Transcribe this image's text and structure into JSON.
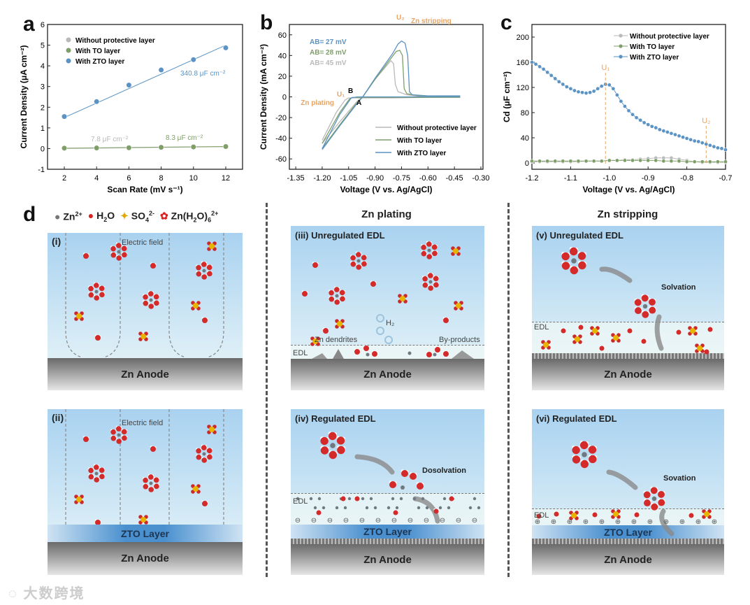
{
  "panel_labels": {
    "a": "a",
    "b": "b",
    "c": "c",
    "d": "d"
  },
  "colors": {
    "without": "#b9b9b9",
    "to": "#7f9f68",
    "zto": "#5a93c4",
    "annotation": "#e8a464"
  },
  "chart_data": [
    {
      "id": "a",
      "type": "scatter",
      "xlabel": "Scan Rate (mV s⁻¹)",
      "ylabel": "Current Density (μA cm⁻²)",
      "xlim": [
        0.96,
        13.04
      ],
      "ylim": [
        -1,
        6
      ],
      "xticks": [
        2,
        4,
        6,
        8,
        10,
        12
      ],
      "yticks": [
        -1,
        0,
        1,
        2,
        3,
        4,
        5,
        6
      ],
      "legend_position": "top-left",
      "series": [
        {
          "name": "Without protective layer",
          "key": "without",
          "x": [
            2,
            4,
            6,
            8,
            10,
            12
          ],
          "y": [
            0.01,
            0.02,
            0.03,
            0.05,
            0.07,
            0.09
          ],
          "fit": [
            [
              2,
              0.0
            ],
            [
              12,
              0.09
            ]
          ]
        },
        {
          "name": "With TO layer",
          "key": "to",
          "x": [
            2,
            4,
            6,
            8,
            10,
            12
          ],
          "y": [
            0.02,
            0.03,
            0.04,
            0.06,
            0.08,
            0.1
          ],
          "fit": [
            [
              2,
              0.02
            ],
            [
              12,
              0.1
            ]
          ]
        },
        {
          "name": "With ZTO layer",
          "key": "zto",
          "x": [
            2,
            4,
            6,
            8,
            10,
            12
          ],
          "y": [
            1.55,
            2.27,
            3.07,
            3.8,
            4.3,
            4.87
          ],
          "fit": [
            [
              2,
              1.5
            ],
            [
              12,
              5.0
            ]
          ]
        }
      ],
      "annotations": {
        "zto": "340.8 μF cm⁻²",
        "without": "7.8 μF cm⁻²",
        "to": "8.3 μF cm⁻²"
      }
    },
    {
      "id": "b",
      "type": "line",
      "xlabel": "Voltage (V vs. Ag/AgCl)",
      "ylabel": "Current Density (mA cm⁻²)",
      "xlim": [
        -1.386,
        -0.288
      ],
      "ylim": [
        -70,
        70
      ],
      "xticks": [
        "-1.35",
        "-1.20",
        "-1.05",
        "-0.90",
        "-0.75",
        "-0.60",
        "-0.45",
        "-0.30"
      ],
      "yticks": [
        -60,
        -40,
        -20,
        0,
        20,
        40,
        60
      ],
      "legend_position": "bottom-right",
      "series": [
        {
          "name": "Without protective layer",
          "key": "without",
          "points": [
            [
              -1.2,
              -45
            ],
            [
              -1.1,
              -24
            ],
            [
              -1.0,
              -4
            ],
            [
              -0.97,
              0
            ],
            [
              -0.9,
              17
            ],
            [
              -0.83,
              31
            ],
            [
              -0.81,
              35
            ],
            [
              -0.795,
              32
            ],
            [
              -0.785,
              12
            ],
            [
              -0.77,
              5
            ],
            [
              -0.72,
              2
            ],
            [
              -0.65,
              0.5
            ],
            [
              -0.42,
              0
            ],
            [
              -0.8,
              -1
            ],
            [
              -1.05,
              -1
            ],
            [
              -1.07,
              -3
            ],
            [
              -1.12,
              -15
            ],
            [
              -1.2,
              -42
            ]
          ]
        },
        {
          "name": "With TO layer",
          "key": "to",
          "points": [
            [
              -1.2,
              -50
            ],
            [
              -1.1,
              -27
            ],
            [
              -1.0,
              -5
            ],
            [
              -0.97,
              0
            ],
            [
              -0.9,
              17
            ],
            [
              -0.82,
              35
            ],
            [
              -0.78,
              44
            ],
            [
              -0.76,
              45
            ],
            [
              -0.745,
              40
            ],
            [
              -0.735,
              8
            ],
            [
              -0.72,
              3
            ],
            [
              -0.65,
              1
            ],
            [
              -0.42,
              0.5
            ],
            [
              -0.42,
              -0.5
            ],
            [
              -0.8,
              -0.5
            ],
            [
              -1.03,
              -0.5
            ],
            [
              -1.045,
              -2
            ],
            [
              -1.1,
              -15
            ],
            [
              -1.2,
              -45
            ]
          ]
        },
        {
          "name": "With ZTO layer",
          "key": "zto",
          "points": [
            [
              -1.2,
              -51
            ],
            [
              -1.1,
              -28
            ],
            [
              -1.0,
              -6
            ],
            [
              -0.97,
              0
            ],
            [
              -0.9,
              18
            ],
            [
              -0.8,
              42
            ],
            [
              -0.77,
              51
            ],
            [
              -0.75,
              54
            ],
            [
              -0.73,
              52
            ],
            [
              -0.715,
              40
            ],
            [
              -0.705,
              5
            ],
            [
              -0.69,
              2
            ],
            [
              -0.6,
              1
            ],
            [
              -0.42,
              1
            ],
            [
              -0.42,
              0
            ],
            [
              -0.8,
              0
            ],
            [
              -1.0,
              0
            ],
            [
              -1.035,
              -1
            ],
            [
              -1.1,
              -17
            ],
            [
              -1.2,
              -50
            ]
          ]
        }
      ],
      "annotations": {
        "ab_zto": "AB= 27 mV",
        "ab_to": "AB= 28 mV",
        "ab_without": "AB= 45 mV",
        "u2": "U₂",
        "stripping": "Zn stripping",
        "plating": "Zn plating",
        "u1": "U₁",
        "B": "B",
        "A": "A"
      }
    },
    {
      "id": "c",
      "type": "line",
      "xlabel": "Voltage (V vs. Ag/AgCl)",
      "ylabel": "Cd (μF cm⁻²)",
      "xlim": [
        -1.2,
        -0.7
      ],
      "ylim": [
        -10,
        220
      ],
      "xticks": [
        "-1.2",
        "-1.1",
        "-1.0",
        "-0.9",
        "-0.8",
        "-0.7"
      ],
      "yticks": [
        0,
        40,
        80,
        120,
        160,
        200
      ],
      "legend_position": "top-right",
      "series": [
        {
          "name": "Without protective layer",
          "key": "without",
          "x_start": -1.2,
          "x_step": 0.02,
          "y": [
            2,
            2,
            2,
            2,
            2,
            2,
            2,
            3,
            3,
            3,
            4,
            4,
            5,
            5,
            6,
            7,
            8,
            8,
            8,
            6,
            4,
            2,
            1,
            1,
            1,
            1
          ]
        },
        {
          "name": "With TO layer",
          "key": "to",
          "x_start": -1.2,
          "x_step": 0.02,
          "y": [
            3,
            3,
            3,
            3,
            3,
            3,
            3,
            3,
            3,
            3,
            4,
            4,
            4,
            4,
            4,
            4,
            4,
            3,
            3,
            3,
            2,
            2,
            2,
            2,
            2,
            2
          ]
        },
        {
          "name": "With ZTO layer",
          "key": "zto",
          "x_start": -1.2,
          "x_step": 0.01,
          "y": [
            160,
            157,
            153,
            149,
            144,
            139,
            134,
            129,
            125,
            121,
            118,
            115,
            113,
            112,
            111,
            112,
            114,
            118,
            122,
            125,
            124,
            118,
            108,
            98,
            90,
            83,
            77,
            72,
            68,
            64,
            61,
            58,
            56,
            53,
            51,
            49,
            47,
            45,
            43,
            41,
            39,
            37,
            35,
            34,
            32,
            30,
            28,
            26,
            24,
            23,
            21
          ]
        }
      ],
      "markers": [
        {
          "label": "U₁",
          "x": -1.01
        },
        {
          "label": "U₂",
          "x": -0.75
        }
      ]
    }
  ],
  "panel_d": {
    "legend": {
      "zn": "Zn",
      "zn_sup": "2+",
      "h2o_h": "H",
      "h2o_sub": "2",
      "h2o_o": "O",
      "so4": "SO",
      "so4_sub": "4",
      "so4_sup": "2-",
      "znh_a": "Zn(H",
      "znh_sub1": "2",
      "znh_b": "O)",
      "znh_sub2": "6",
      "znh_sup": "2+"
    },
    "col_titles": {
      "plating": "Zn plating",
      "stripping": "Zn stripping"
    },
    "i": {
      "num": "(i)",
      "field": "Electric field",
      "anode": "Zn Anode"
    },
    "ii": {
      "num": "(ii)",
      "field": "Electric field",
      "layer": "ZTO Layer",
      "anode": "Zn Anode"
    },
    "iii": {
      "num": "(iii)",
      "title": "Unregulated EDL",
      "h2": "H₂",
      "dendrites": "Zn dendrites",
      "byproducts": "By-products",
      "edl": "EDL",
      "anode": "Zn Anode"
    },
    "iv": {
      "num": "(iv)",
      "title": "Regulated EDL",
      "process": "Dosolvation",
      "edl": "EDL",
      "layer": "ZTO Layer",
      "anode": "Zn Anode"
    },
    "v": {
      "num": "(v)",
      "title": "Unregulated EDL",
      "process": "Solvation",
      "edl": "EDL",
      "anode": "Zn Anode"
    },
    "vi": {
      "num": "(vi)",
      "title": "Regulated EDL",
      "process": "Sovation",
      "edl": "EDL",
      "layer": "ZTO Layer",
      "anode": "Zn Anode"
    }
  },
  "watermark": "大数跨境"
}
